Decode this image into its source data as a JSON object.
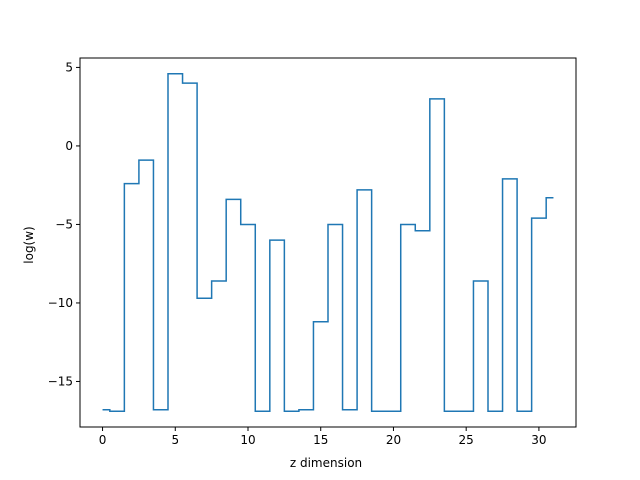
{
  "chart_data": {
    "type": "line",
    "drawstyle": "steps-mid",
    "title": "",
    "xlabel": "z dimension",
    "ylabel": "log(w)",
    "xlim": [
      -1.55,
      32.55
    ],
    "ylim": [
      -17.9,
      5.6
    ],
    "xticks": [
      0,
      5,
      10,
      15,
      20,
      25,
      30
    ],
    "xtick_labels": [
      "0",
      "5",
      "10",
      "15",
      "20",
      "25",
      "30"
    ],
    "yticks": [
      5,
      0,
      -5,
      -10,
      -15
    ],
    "ytick_labels": [
      "5",
      "0",
      "−5",
      "−10",
      "−15"
    ],
    "grid": false,
    "line_color": "#1f77b4",
    "series": [
      {
        "x": [
          0,
          1,
          2,
          3,
          4,
          5,
          6,
          7,
          8,
          9,
          10,
          11,
          12,
          13,
          14,
          15,
          16,
          17,
          18,
          19,
          20,
          21,
          22,
          23,
          24,
          25,
          26,
          27,
          28,
          29,
          30,
          31
        ],
        "y": [
          -16.8,
          -16.9,
          -2.4,
          -0.9,
          -16.8,
          4.6,
          4.0,
          -9.7,
          -8.6,
          -3.4,
          -5.0,
          -16.9,
          -6.0,
          -16.9,
          -16.8,
          -11.2,
          -5.0,
          -16.8,
          -2.8,
          -16.9,
          -16.9,
          -5.0,
          -5.4,
          3.0,
          -16.9,
          -16.9,
          -8.6,
          -16.9,
          -2.1,
          -16.9,
          -4.6,
          -3.3
        ]
      }
    ]
  }
}
